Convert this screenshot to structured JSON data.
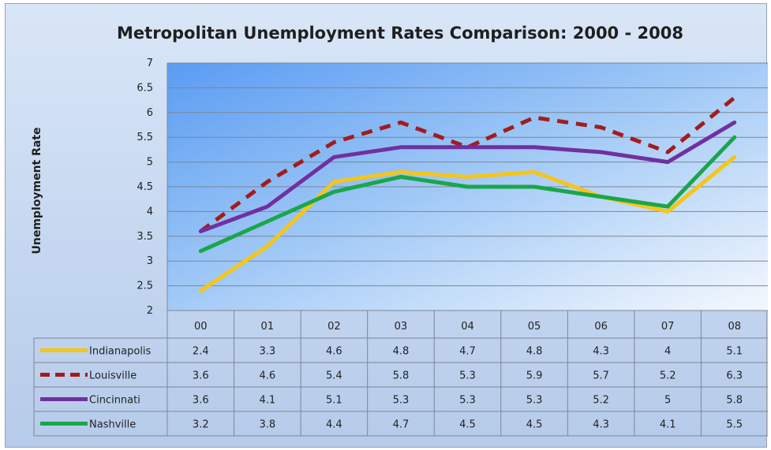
{
  "chart_data": {
    "type": "line",
    "title": "Metropolitan Unemployment Rates Comparison: 2000 - 2008",
    "ylabel": "Unemployment Rate",
    "xlabel": "",
    "categories": [
      "00",
      "01",
      "02",
      "03",
      "04",
      "05",
      "06",
      "07",
      "08"
    ],
    "ylim": [
      2,
      7
    ],
    "yticks": [
      "2",
      "2.5",
      "3",
      "3.5",
      "4",
      "4.5",
      "5",
      "5.5",
      "6",
      "6.5",
      "7"
    ],
    "grid": true,
    "legend": "data-table-left",
    "series": [
      {
        "name": "Indianapolis",
        "color": "#f5c518",
        "dash": "solid",
        "values": [
          2.4,
          3.3,
          4.6,
          4.8,
          4.7,
          4.8,
          4.3,
          4,
          5.1
        ],
        "labels": [
          "2.4",
          "3.3",
          "4.6",
          "4.8",
          "4.7",
          "4.8",
          "4.3",
          "4",
          "5.1"
        ]
      },
      {
        "name": "Louisville",
        "color": "#a31c1c",
        "dash": "dashed",
        "values": [
          3.6,
          4.6,
          5.4,
          5.8,
          5.3,
          5.9,
          5.7,
          5.2,
          6.3
        ],
        "labels": [
          "3.6",
          "4.6",
          "5.4",
          "5.8",
          "5.3",
          "5.9",
          "5.7",
          "5.2",
          "6.3"
        ]
      },
      {
        "name": "Cincinnati",
        "color": "#7030a0",
        "dash": "solid",
        "values": [
          3.6,
          4.1,
          5.1,
          5.3,
          5.3,
          5.3,
          5.2,
          5,
          5.8
        ],
        "labels": [
          "3.6",
          "4.1",
          "5.1",
          "5.3",
          "5.3",
          "5.3",
          "5.2",
          "5",
          "5.8"
        ]
      },
      {
        "name": "Nashville",
        "color": "#1aa64a",
        "dash": "solid",
        "values": [
          3.2,
          3.8,
          4.4,
          4.7,
          4.5,
          4.5,
          4.3,
          4.1,
          5.5
        ],
        "labels": [
          "3.2",
          "3.8",
          "4.4",
          "4.7",
          "4.5",
          "4.5",
          "4.3",
          "4.1",
          "5.5"
        ]
      }
    ]
  }
}
